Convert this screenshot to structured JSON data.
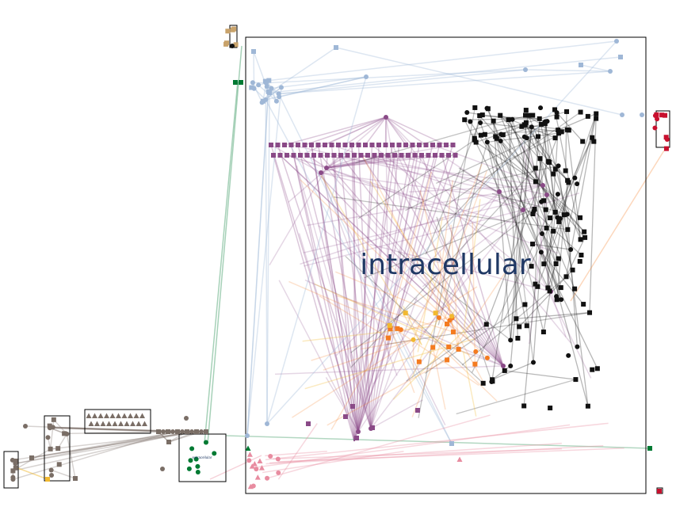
{
  "compartments": {
    "main": {
      "label": "intracellular",
      "label_color": "#1f3864"
    },
    "small": {
      "label": "extracellular",
      "label_color": "#1f3864"
    }
  },
  "palette": {
    "purple": "#8a4a87",
    "black": "#111111",
    "lightblue": "#9fb7d6",
    "orange": "#f47b20",
    "yellow": "#f2b92f",
    "green": "#007a33",
    "red": "#c8102e",
    "pink": "#e88ca0",
    "taupe": "#7a6e66",
    "tan": "#c9a36b",
    "grey": "#8c8c8c"
  }
}
